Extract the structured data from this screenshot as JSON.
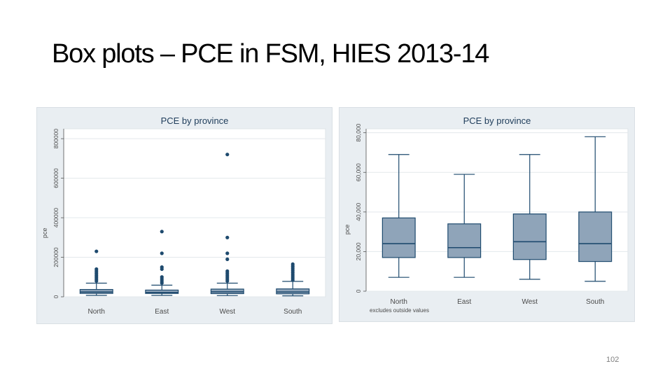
{
  "slide": {
    "title": "Box plots – PCE in FSM, HIES 2013-14",
    "page_number": "102"
  },
  "colors": {
    "panel_bg": "#e9eef2",
    "plot_bg": "#ffffff",
    "gridline": "#e3e8ec",
    "box_fill": "#8fa4b9",
    "box_stroke": "#1e4a6e",
    "outlier": "#1e4a6e",
    "text": "#4a4a4a"
  },
  "chart_data": [
    {
      "type": "boxplot",
      "title": "PCE by province",
      "xlabel": "",
      "ylabel": "pce",
      "categories": [
        "North",
        "East",
        "West",
        "South"
      ],
      "yticks": [
        "0",
        "200000",
        "400000",
        "600000",
        "800000"
      ],
      "ytick_values": [
        0,
        200000,
        400000,
        600000,
        800000
      ],
      "ylim": [
        0,
        850000
      ],
      "note": "",
      "grid": true,
      "boxes": [
        {
          "category": "North",
          "min": 7000,
          "q1": 17000,
          "median": 24000,
          "q3": 37000,
          "max": 69000,
          "outliers": [
            80000,
            90000,
            100000,
            110000,
            120000,
            130000,
            140000,
            230000
          ]
        },
        {
          "category": "East",
          "min": 7000,
          "q1": 17000,
          "median": 22000,
          "q3": 34000,
          "max": 59000,
          "outliers": [
            70000,
            80000,
            90000,
            100000,
            140000,
            150000,
            220000,
            330000
          ]
        },
        {
          "category": "West",
          "min": 6000,
          "q1": 16000,
          "median": 25000,
          "q3": 39000,
          "max": 69000,
          "outliers": [
            80000,
            90000,
            100000,
            110000,
            120000,
            130000,
            190000,
            220000,
            300000,
            720000
          ]
        },
        {
          "category": "South",
          "min": 5000,
          "q1": 15000,
          "median": 24000,
          "q3": 40000,
          "max": 78000,
          "outliers": [
            85000,
            95000,
            105000,
            115000,
            125000,
            135000,
            145000,
            155000,
            165000
          ]
        }
      ]
    },
    {
      "type": "boxplot",
      "title": "PCE by province",
      "xlabel": "",
      "ylabel": "pce",
      "categories": [
        "North",
        "East",
        "West",
        "South"
      ],
      "yticks": [
        "0",
        "20,000",
        "40,000",
        "60,000",
        "80,000"
      ],
      "ytick_values": [
        0,
        20000,
        40000,
        60000,
        80000
      ],
      "ylim": [
        0,
        82000
      ],
      "note": "excludes outside values",
      "grid": true,
      "boxes": [
        {
          "category": "North",
          "min": 7000,
          "q1": 17000,
          "median": 24000,
          "q3": 37000,
          "max": 69000,
          "outliers": []
        },
        {
          "category": "East",
          "min": 7000,
          "q1": 17000,
          "median": 22000,
          "q3": 34000,
          "max": 59000,
          "outliers": []
        },
        {
          "category": "West",
          "min": 6000,
          "q1": 16000,
          "median": 25000,
          "q3": 39000,
          "max": 69000,
          "outliers": []
        },
        {
          "category": "South",
          "min": 5000,
          "q1": 15000,
          "median": 24000,
          "q3": 40000,
          "max": 78000,
          "outliers": []
        }
      ]
    }
  ]
}
